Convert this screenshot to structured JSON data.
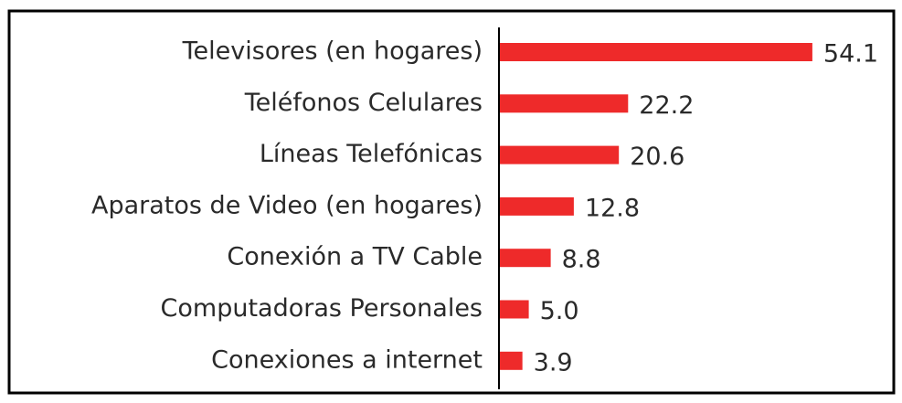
{
  "chart_data": {
    "type": "bar",
    "orientation": "horizontal",
    "categories": [
      "Televisores (en hogares)",
      "Teléfonos Celulares",
      "Líneas Telefónicas",
      "Aparatos de Video (en hogares)",
      "Conexión a TV Cable",
      "Computadoras Personales",
      "Conexiones a internet"
    ],
    "values": [
      54.1,
      22.2,
      20.6,
      12.8,
      8.8,
      5.0,
      3.9
    ],
    "value_labels": [
      "54.1",
      "22.2",
      "20.6",
      "12.8",
      "8.8",
      "5.0",
      "3.9"
    ],
    "color": "#ee2a2a"
  }
}
